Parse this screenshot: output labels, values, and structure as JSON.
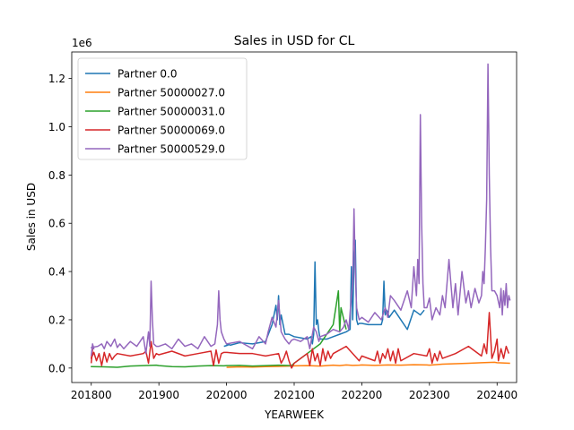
{
  "chart_data": {
    "type": "line",
    "title": "Sales in USD for CL",
    "xlabel": "YEARWEEK",
    "ylabel": "Sales in USD",
    "y_offset_label": "1e6",
    "xlim": [
      201737,
      202415
    ],
    "ylim": [
      -0.06,
      1.31
    ],
    "x_ticks": [
      {
        "value": 201800,
        "label": "201800"
      },
      {
        "value": 201900,
        "label": "201900"
      },
      {
        "value": 202000,
        "label": "202000"
      },
      {
        "value": 202100,
        "label": "202100"
      },
      {
        "value": 202200,
        "label": "202200"
      },
      {
        "value": 202300,
        "label": "202300"
      },
      {
        "value": 202400,
        "label": "202400"
      }
    ],
    "y_ticks": [
      {
        "value": 0.0,
        "label": "0.0"
      },
      {
        "value": 0.2,
        "label": "0.2"
      },
      {
        "value": 0.4,
        "label": "0.4"
      },
      {
        "value": 0.6,
        "label": "0.6"
      },
      {
        "value": 0.8,
        "label": "0.8"
      },
      {
        "value": 1.0,
        "label": "1.0"
      },
      {
        "value": 1.2,
        "label": "1.2"
      }
    ],
    "grid": false,
    "legend": "top-left",
    "series": [
      {
        "name": "Partner 0.0",
        "color": "#1f77b4",
        "x": [
          201950,
          201953,
          202000,
          202003,
          202010,
          202020,
          202030,
          202035,
          202038,
          202039,
          202040,
          202041,
          202042,
          202045,
          202048,
          202100,
          202105,
          202110,
          202113,
          202114,
          202115,
          202116,
          202117,
          202118,
          202119,
          202120,
          202125,
          202130,
          202135,
          202140,
          202143,
          202144,
          202145,
          202146,
          202147,
          202148,
          202149,
          202150,
          202200,
          202205,
          202210,
          202215,
          202216,
          202217,
          202218,
          202219,
          202220,
          202221,
          202225,
          202230,
          202235,
          202240,
          202245,
          202248
        ],
        "y": [
          0.09,
          0.095,
          0.1,
          0.095,
          0.105,
          0.1,
          0.11,
          0.18,
          0.26,
          0.2,
          0.3,
          0.18,
          0.22,
          0.14,
          0.14,
          0.13,
          0.125,
          0.12,
          0.13,
          0.1,
          0.14,
          0.44,
          0.18,
          0.2,
          0.15,
          0.12,
          0.12,
          0.13,
          0.14,
          0.15,
          0.16,
          0.42,
          0.2,
          0.45,
          0.53,
          0.2,
          0.18,
          0.185,
          0.185,
          0.18,
          0.18,
          0.18,
          0.2,
          0.36,
          0.22,
          0.24,
          0.23,
          0.21,
          0.24,
          0.2,
          0.16,
          0.24,
          0.22,
          0.24
        ]
      },
      {
        "name": "Partner 50000027.0",
        "color": "#ff7f0e",
        "x": [
          202000,
          202010,
          202020,
          202030,
          202040,
          202048,
          202100,
          202110,
          202120,
          202130,
          202135,
          202140,
          202145,
          202150,
          202200,
          202210,
          202220,
          202230,
          202240,
          202250,
          202300,
          202310,
          202320,
          202330,
          202340,
          202350,
          202400,
          202410
        ],
        "y": [
          0.003,
          0.005,
          0.004,
          0.006,
          0.007,
          0.008,
          0.009,
          0.01,
          0.008,
          0.012,
          0.01,
          0.013,
          0.011,
          0.012,
          0.013,
          0.011,
          0.013,
          0.012,
          0.014,
          0.013,
          0.012,
          0.016,
          0.018,
          0.02,
          0.022,
          0.024,
          0.022,
          0.02
        ]
      },
      {
        "name": "Partner 50000031.0",
        "color": "#2ca02c",
        "x": [
          201752,
          201800,
          201810,
          201820,
          201830,
          201840,
          201850,
          201900,
          201910,
          201920,
          201930,
          201940,
          201950,
          202000,
          202010,
          202020,
          202030,
          202040,
          202050,
          202100,
          202110,
          202120,
          202130,
          202134,
          202135,
          202136,
          202140
        ],
        "y": [
          0.008,
          0.006,
          0.005,
          0.003,
          0.008,
          0.01,
          0.012,
          0.01,
          0.006,
          0.005,
          0.008,
          0.01,
          0.009,
          0.01,
          0.011,
          0.008,
          0.01,
          0.012,
          0.01,
          0.02,
          0.06,
          0.1,
          0.18,
          0.32,
          0.15,
          0.25,
          0.16
        ]
      },
      {
        "name": "Partner 50000069.0",
        "color": "#d62728",
        "x": [
          201752,
          201753,
          201800,
          201802,
          201804,
          201806,
          201808,
          201810,
          201812,
          201814,
          201816,
          201818,
          201820,
          201830,
          201840,
          201842,
          201844,
          201846,
          201848,
          201850,
          201900,
          201910,
          201920,
          201930,
          201940,
          201942,
          201944,
          201946,
          201948,
          201950,
          202000,
          202010,
          202020,
          202030,
          202040,
          202042,
          202044,
          202046,
          202048,
          202050,
          202100,
          202110,
          202112,
          202114,
          202116,
          202118,
          202120,
          202122,
          202124,
          202126,
          202128,
          202130,
          202140,
          202150,
          202200,
          202210,
          202212,
          202214,
          202216,
          202218,
          202220,
          202222,
          202224,
          202226,
          202228,
          202230,
          202240,
          202250,
          202300,
          202302,
          202304,
          202306,
          202308,
          202310,
          202320,
          202330,
          202340,
          202342,
          202344,
          202346,
          202348,
          202350,
          202400,
          202401,
          202403,
          202405,
          202407,
          202409
        ],
        "y": [
          0.02,
          0.08,
          0.04,
          0.065,
          0.03,
          0.06,
          0.01,
          0.065,
          0.025,
          0.06,
          0.035,
          0.05,
          0.06,
          0.05,
          0.06,
          0.07,
          0.02,
          0.11,
          0.04,
          0.06,
          0.055,
          0.07,
          0.05,
          0.06,
          0.07,
          0.01,
          0.075,
          0.02,
          0.06,
          0.065,
          0.065,
          0.06,
          0.06,
          0.05,
          0.06,
          0.02,
          0.04,
          0.07,
          0.03,
          0.0,
          0.02,
          0.06,
          0.01,
          0.08,
          0.03,
          0.06,
          0.01,
          0.08,
          0.03,
          0.07,
          0.04,
          0.06,
          0.09,
          0.03,
          0.05,
          0.03,
          0.07,
          0.02,
          0.06,
          0.04,
          0.08,
          0.03,
          0.07,
          0.02,
          0.08,
          0.03,
          0.06,
          0.05,
          0.08,
          0.02,
          0.06,
          0.03,
          0.07,
          0.04,
          0.06,
          0.09,
          0.05,
          0.1,
          0.06,
          0.23,
          0.04,
          0.07,
          0.12,
          0.03,
          0.08,
          0.04,
          0.09,
          0.06
        ]
      },
      {
        "name": "Partner 50000529.0",
        "color": "#9467bd",
        "x": [
          201752,
          201753,
          201754,
          201800,
          201805,
          201808,
          201810,
          201812,
          201815,
          201818,
          201820,
          201822,
          201825,
          201830,
          201835,
          201840,
          201842,
          201844,
          201845,
          201846,
          201847,
          201848,
          201850,
          201900,
          201905,
          201910,
          201915,
          201920,
          201925,
          201930,
          201935,
          201940,
          201943,
          201945,
          201946,
          201947,
          201948,
          201950,
          202000,
          202010,
          202020,
          202025,
          202030,
          202032,
          202035,
          202038,
          202040,
          202042,
          202045,
          202048,
          202050,
          202100,
          202105,
          202110,
          202112,
          202115,
          202117,
          202119,
          202120,
          202125,
          202130,
          202135,
          202138,
          202140,
          202142,
          202144,
          202145,
          202146,
          202147,
          202148,
          202150,
          202200,
          202205,
          202210,
          202215,
          202218,
          202220,
          202222,
          202225,
          202230,
          202235,
          202238,
          202240,
          202242,
          202243,
          202244,
          202245,
          202246,
          202247,
          202248,
          202250,
          202300,
          202302,
          202305,
          202308,
          202310,
          202312,
          202315,
          202318,
          202320,
          202322,
          202325,
          202328,
          202330,
          202332,
          202335,
          202338,
          202340,
          202341,
          202342,
          202343,
          202344,
          202345,
          202346,
          202347,
          202348,
          202350,
          202400,
          202402,
          202403,
          202404,
          202405,
          202406,
          202407,
          202408,
          202409,
          202410
        ],
        "y": [
          0.05,
          0.1,
          0.08,
          0.085,
          0.09,
          0.1,
          0.08,
          0.11,
          0.09,
          0.12,
          0.085,
          0.1,
          0.08,
          0.11,
          0.09,
          0.13,
          0.06,
          0.15,
          0.09,
          0.36,
          0.2,
          0.1,
          0.09,
          0.09,
          0.1,
          0.08,
          0.12,
          0.09,
          0.1,
          0.08,
          0.13,
          0.09,
          0.1,
          0.18,
          0.32,
          0.2,
          0.15,
          0.12,
          0.1,
          0.11,
          0.08,
          0.13,
          0.1,
          0.15,
          0.21,
          0.17,
          0.28,
          0.15,
          0.12,
          0.1,
          0.115,
          0.12,
          0.11,
          0.13,
          0.08,
          0.17,
          0.15,
          0.11,
          0.13,
          0.14,
          0.16,
          0.15,
          0.17,
          0.2,
          0.16,
          0.3,
          0.35,
          0.66,
          0.4,
          0.25,
          0.2,
          0.21,
          0.19,
          0.23,
          0.2,
          0.25,
          0.21,
          0.3,
          0.28,
          0.24,
          0.32,
          0.25,
          0.42,
          0.3,
          0.45,
          0.35,
          1.05,
          0.6,
          0.35,
          0.25,
          0.25,
          0.29,
          0.2,
          0.25,
          0.22,
          0.3,
          0.25,
          0.45,
          0.25,
          0.35,
          0.22,
          0.4,
          0.27,
          0.32,
          0.25,
          0.33,
          0.27,
          0.3,
          0.4,
          0.35,
          0.5,
          0.7,
          1.26,
          0.8,
          0.5,
          0.32,
          0.32,
          0.3,
          0.25,
          0.33,
          0.22,
          0.32,
          0.26,
          0.35,
          0.25,
          0.3,
          0.28
        ]
      }
    ]
  }
}
